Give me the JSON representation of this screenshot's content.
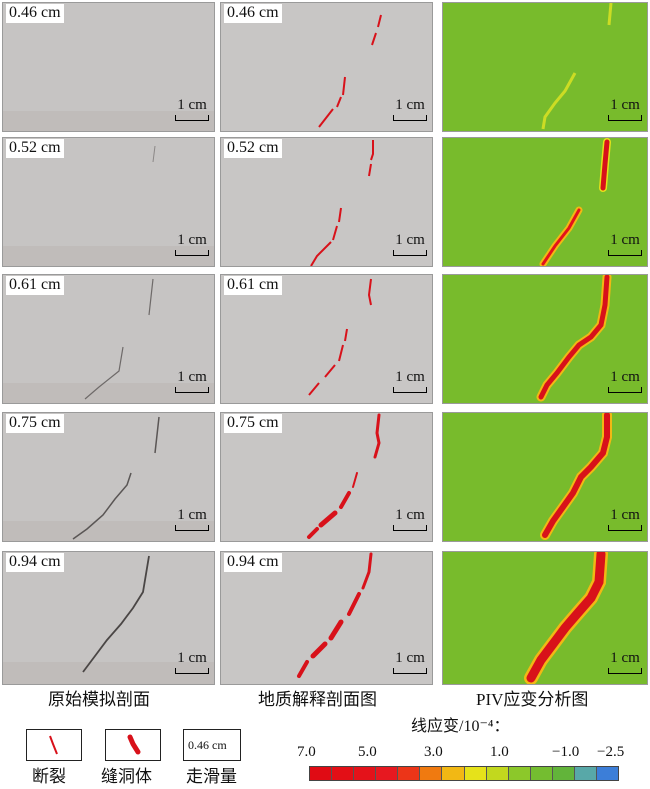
{
  "rows": [
    {
      "slip": "0.46 cm"
    },
    {
      "slip": "0.52 cm"
    },
    {
      "slip": "0.61 cm"
    },
    {
      "slip": "0.75 cm"
    },
    {
      "slip": "0.94 cm"
    }
  ],
  "scale_bar_label": "1 cm",
  "column_titles": [
    "原始模拟剖面",
    "地质解释剖面图",
    "PIV应变分析图"
  ],
  "legend": {
    "fracture": "断裂",
    "cavity": "缝洞体",
    "slip": "走滑量",
    "slip_example": "0.46 cm"
  },
  "colorbar": {
    "title": "线应变/10⁻⁴：",
    "ticks": [
      "7.0",
      "5.0",
      "3.0",
      "1.0",
      "−1.0",
      "−2.5"
    ],
    "colors": [
      "#e00b14",
      "#e30f16",
      "#e4121a",
      "#e71820",
      "#ec3518",
      "#f07a10",
      "#f2b814",
      "#e6e21a",
      "#c2d81e",
      "#8cc82a",
      "#74bd30",
      "#62b43a",
      "#58a8a8",
      "#3c7ed8"
    ]
  },
  "colors": {
    "model_background": "#c7c5c4",
    "fracture_red": "#d8111a",
    "piv_green": "#78bb2c"
  }
}
